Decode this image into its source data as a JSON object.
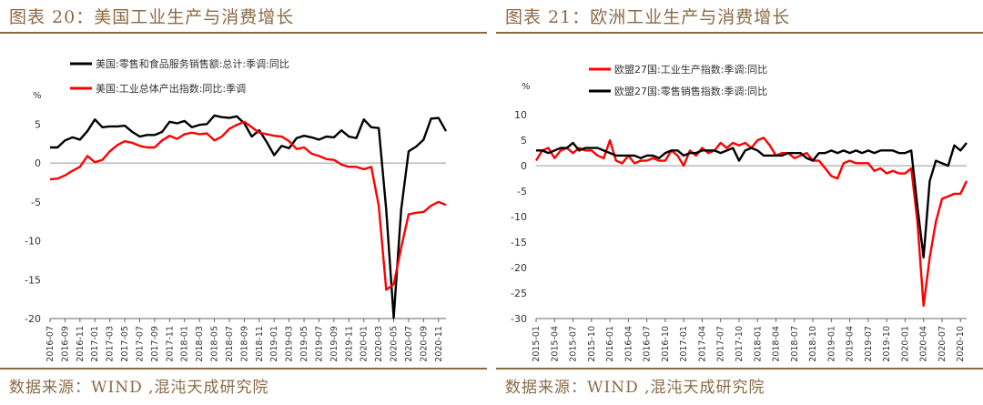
{
  "charts": [
    {
      "figure_title": "图表 20：美国工业生产与消费增长",
      "source": "数据来源：WIND ,混沌天成研究院",
      "chart_data": {
        "type": "line",
        "ylabel": "%",
        "ylim": [
          -20,
          7.5
        ],
        "yticks": [
          5,
          0,
          -5,
          -10,
          -15,
          -20
        ],
        "grid": false,
        "legend_position": "top",
        "xticks": [
          "2016-07",
          "2016-09",
          "2016-11",
          "2017-01",
          "2017-03",
          "2017-05",
          "2017-07",
          "2017-09",
          "2017-11",
          "2018-01",
          "2018-03",
          "2018-05",
          "2018-07",
          "2018-09",
          "2018-11",
          "2019-01",
          "2019-03",
          "2019-05",
          "2019-07",
          "2019-09",
          "2019-11",
          "2020-01",
          "2020-03",
          "2020-05",
          "2020-07",
          "2020-09",
          "2020-11"
        ],
        "x": [
          "2016-07",
          "2016-08",
          "2016-09",
          "2016-10",
          "2016-11",
          "2016-12",
          "2017-01",
          "2017-02",
          "2017-03",
          "2017-04",
          "2017-05",
          "2017-06",
          "2017-07",
          "2017-08",
          "2017-09",
          "2017-10",
          "2017-11",
          "2017-12",
          "2018-01",
          "2018-02",
          "2018-03",
          "2018-04",
          "2018-05",
          "2018-06",
          "2018-07",
          "2018-08",
          "2018-09",
          "2018-10",
          "2018-11",
          "2018-12",
          "2019-01",
          "2019-02",
          "2019-03",
          "2019-04",
          "2019-05",
          "2019-06",
          "2019-07",
          "2019-08",
          "2019-09",
          "2019-10",
          "2019-11",
          "2019-12",
          "2020-01",
          "2020-02",
          "2020-03",
          "2020-04",
          "2020-05",
          "2020-06",
          "2020-07",
          "2020-08",
          "2020-09",
          "2020-10",
          "2020-11",
          "2020-12"
        ],
        "series": [
          {
            "name": "美国:零售和食品服务销售额:总计:季调:同比",
            "color": "#000000",
            "values": [
              2.0,
              2.0,
              2.9,
              3.3,
              3.0,
              4.1,
              5.6,
              4.6,
              4.7,
              4.7,
              4.8,
              4.0,
              3.4,
              3.6,
              3.6,
              4.0,
              5.3,
              5.1,
              5.4,
              4.6,
              4.9,
              5.0,
              6.1,
              5.9,
              5.8,
              6.0,
              5.1,
              3.4,
              4.2,
              2.7,
              1.0,
              2.2,
              1.9,
              3.2,
              3.5,
              3.3,
              3.0,
              3.4,
              3.3,
              4.2,
              3.4,
              3.2,
              5.6,
              4.6,
              4.5,
              -6.0,
              -19.9,
              -6.0,
              1.5,
              2.1,
              3.0,
              5.7,
              5.8,
              4.1
            ]
          },
          {
            "name": "美国:工业总体产出指数:同比:季调",
            "color": "#ff0000",
            "values": [
              -2.1,
              -2.0,
              -1.6,
              -1.0,
              -0.5,
              0.9,
              0.1,
              0.4,
              1.5,
              2.3,
              2.8,
              2.6,
              2.2,
              2.0,
              2.0,
              2.9,
              3.5,
              3.1,
              3.7,
              3.9,
              3.7,
              3.8,
              2.9,
              3.4,
              4.4,
              4.9,
              5.3,
              4.6,
              3.9,
              3.7,
              3.5,
              3.4,
              2.8,
              1.8,
              2.0,
              1.2,
              0.9,
              0.5,
              0.4,
              -0.2,
              -0.5,
              -0.5,
              -0.8,
              -0.5,
              -5.5,
              -16.3,
              -15.6,
              -10.9,
              -6.6,
              -6.4,
              -6.3,
              -5.5,
              -5.0,
              -5.4
            ]
          }
        ]
      }
    },
    {
      "figure_title": "图表 21：欧洲工业生产与消费增长",
      "source": "数据来源：WIND ,混沌天成研究院",
      "chart_data": {
        "type": "line",
        "ylabel": "%",
        "ylim": [
          -30,
          12
        ],
        "yticks": [
          10,
          5,
          0,
          -5,
          -10,
          -15,
          -20,
          -25,
          -30
        ],
        "grid": false,
        "legend_position": "top",
        "xticks": [
          "2015-01",
          "2015-04",
          "2015-07",
          "2015-10",
          "2016-01",
          "2016-04",
          "2016-07",
          "2016-10",
          "2017-01",
          "2017-04",
          "2017-07",
          "2017-10",
          "2018-01",
          "2018-04",
          "2018-07",
          "2018-10",
          "2019-01",
          "2019-04",
          "2019-07",
          "2019-10",
          "2020-01",
          "2020-04",
          "2020-07",
          "2020-10"
        ],
        "x": [
          "2015-01",
          "2015-02",
          "2015-03",
          "2015-04",
          "2015-05",
          "2015-06",
          "2015-07",
          "2015-08",
          "2015-09",
          "2015-10",
          "2015-11",
          "2015-12",
          "2016-01",
          "2016-02",
          "2016-03",
          "2016-04",
          "2016-05",
          "2016-06",
          "2016-07",
          "2016-08",
          "2016-09",
          "2016-10",
          "2016-11",
          "2016-12",
          "2017-01",
          "2017-02",
          "2017-03",
          "2017-04",
          "2017-05",
          "2017-06",
          "2017-07",
          "2017-08",
          "2017-09",
          "2017-10",
          "2017-11",
          "2017-12",
          "2018-01",
          "2018-02",
          "2018-03",
          "2018-04",
          "2018-05",
          "2018-06",
          "2018-07",
          "2018-08",
          "2018-09",
          "2018-10",
          "2018-11",
          "2018-12",
          "2019-01",
          "2019-02",
          "2019-03",
          "2019-04",
          "2019-05",
          "2019-06",
          "2019-07",
          "2019-08",
          "2019-09",
          "2019-10",
          "2019-11",
          "2019-12",
          "2020-01",
          "2020-02",
          "2020-03",
          "2020-04",
          "2020-05",
          "2020-06",
          "2020-07",
          "2020-08",
          "2020-09",
          "2020-10",
          "2020-11"
        ],
        "series": [
          {
            "name": "欧盟27国:工业生产指数:季调:同比",
            "color": "#ff0000",
            "values": [
              1.0,
              3.0,
              3.5,
              1.5,
              3.0,
              3.5,
              2.5,
              3.5,
              3.0,
              3.0,
              2.0,
              1.5,
              5.0,
              1.0,
              0.5,
              2.0,
              0.5,
              1.0,
              1.0,
              1.5,
              1.0,
              1.0,
              3.0,
              2.0,
              0.0,
              3.0,
              2.0,
              3.5,
              2.5,
              3.0,
              4.5,
              3.5,
              4.5,
              4.0,
              4.5,
              3.5,
              5.0,
              5.5,
              4.0,
              2.0,
              2.5,
              2.5,
              1.5,
              2.0,
              2.5,
              1.0,
              1.0,
              -0.5,
              -2.0,
              -2.5,
              0.5,
              1.0,
              0.5,
              0.5,
              0.5,
              -1.0,
              -0.5,
              -1.5,
              -1.0,
              -1.5,
              -1.5,
              -0.5,
              -11.0,
              -27.5,
              -18.0,
              -11.0,
              -6.5,
              -6.0,
              -5.5,
              -5.5,
              -3.0
            ]
          },
          {
            "name": "欧盟27国:零售销售指数:季调:同比",
            "color": "#000000",
            "values": [
              3.0,
              3.0,
              2.5,
              3.0,
              3.5,
              3.5,
              4.5,
              3.0,
              3.5,
              3.5,
              3.5,
              3.0,
              2.5,
              2.0,
              2.0,
              2.0,
              2.0,
              1.5,
              2.0,
              2.0,
              1.5,
              2.5,
              3.0,
              3.0,
              2.0,
              2.5,
              2.5,
              3.0,
              3.0,
              3.0,
              2.5,
              3.0,
              3.5,
              1.0,
              3.0,
              3.5,
              3.0,
              2.0,
              2.0,
              2.0,
              2.0,
              2.5,
              2.5,
              2.5,
              1.5,
              1.0,
              2.5,
              2.5,
              3.0,
              2.5,
              3.0,
              2.5,
              3.0,
              2.5,
              3.0,
              2.5,
              3.0,
              3.0,
              3.0,
              2.5,
              2.5,
              3.0,
              -8.0,
              -18.0,
              -3.0,
              1.0,
              0.5,
              0.0,
              4.0,
              3.0,
              4.5
            ]
          }
        ]
      }
    }
  ]
}
